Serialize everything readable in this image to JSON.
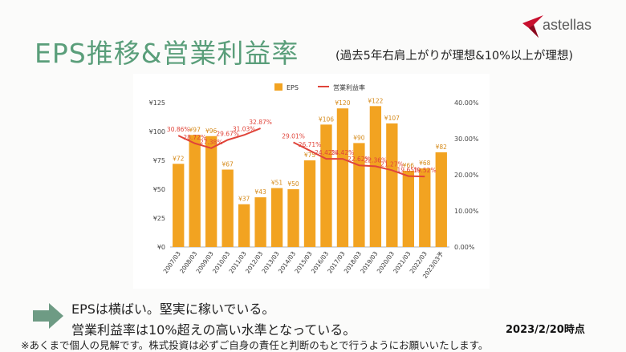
{
  "header": {
    "title": "EPS推移&営業利益率",
    "subtitle": "(過去5年右肩上がりが理想&10%以上が理想)",
    "logo_text": "astellas"
  },
  "chart_data": {
    "type": "bar",
    "categories": [
      "2007/03",
      "2008/03",
      "2009/03",
      "2010/03",
      "2011/03",
      "2012/03",
      "2013/03",
      "2014/03",
      "2015/03",
      "2016/03",
      "2017/03",
      "2018/03",
      "2019/03",
      "2020/03",
      "2021/03",
      "2022/03",
      "2023/03予"
    ],
    "series": [
      {
        "name": "EPS",
        "type": "bar",
        "color": "#f2a321",
        "values": [
          72,
          97,
          96,
          67,
          37,
          43,
          51,
          50,
          75,
          106,
          120,
          90,
          122,
          107,
          66,
          68,
          82
        ],
        "labels": [
          "¥72",
          "¥97",
          "¥96",
          "¥67",
          "¥37",
          "¥43",
          "¥51",
          "¥50",
          "¥75",
          "¥106",
          "¥120",
          "¥90",
          "¥122",
          "¥107",
          "¥66",
          "¥68",
          "¥82"
        ]
      },
      {
        "name": "営業利益率",
        "type": "line",
        "axis": "right",
        "color": "#e0443a",
        "values": [
          30.86,
          28.72,
          27.38,
          29.67,
          31.03,
          32.87,
          null,
          29.01,
          26.71,
          24.42,
          24.42,
          22.62,
          22.36,
          21.27,
          19.65,
          19.52,
          null
        ],
        "labels": [
          "30.86%",
          "28.72%",
          "27.38%",
          "29.67%",
          "31.03%",
          "32.87%",
          "",
          "29.01%",
          "26.71%",
          "24.42%",
          "24.42%",
          "22.62%",
          "22.36%",
          "21.27%",
          "19.65%",
          "19.52%",
          ""
        ]
      }
    ],
    "y_left": {
      "ylim": [
        0,
        125
      ],
      "ticks": [
        "¥0",
        "¥25",
        "¥50",
        "¥75",
        "¥100",
        "¥125"
      ]
    },
    "y_right": {
      "ylim": [
        0,
        40
      ],
      "ticks": [
        "0.00%",
        "10.00%",
        "20.00%",
        "30.00%",
        "40.00%"
      ]
    },
    "legend": {
      "position": "top",
      "items": [
        "EPS",
        "営業利益率"
      ]
    },
    "grid": false
  },
  "comments": {
    "line1": "EPSは横ばい。堅実に稼いでいる。",
    "line2": "営業利益率は10%超えの高い水準となっている。"
  },
  "as_of": "2023/2/20時点",
  "disclaimer": "※あくまで個人の見解です。株式投資は必ずご自身の責任と判断のもとで行うようにお願いいたします。",
  "colors": {
    "title": "#5a9e7a",
    "bar": "#f2a321",
    "line": "#e0443a",
    "arrow": "#6e9b84"
  }
}
